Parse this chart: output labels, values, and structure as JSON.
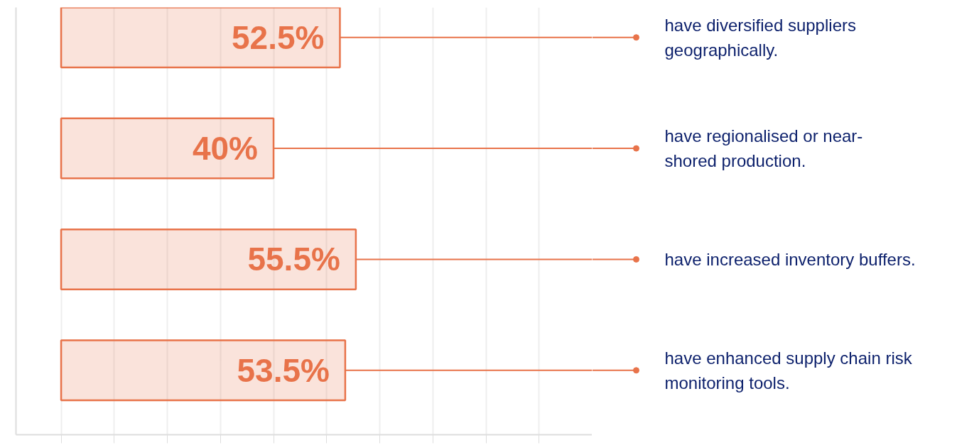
{
  "chart_data": {
    "type": "bar",
    "orientation": "horizontal",
    "categories": [
      "have diversified suppliers\ngeographically.",
      "have regionalised or near-\nshored production.",
      "have increased inventory buffers.",
      "have enhanced supply chain risk\nmonitoring tools."
    ],
    "values": [
      52.5,
      40,
      55.5,
      53.5
    ],
    "value_labels": [
      "52.5%",
      "40%",
      "55.5%",
      "53.5%"
    ],
    "color": "#e8734a",
    "xlim": [
      -8.5,
      100
    ],
    "xticks": [
      {
        "value": 0,
        "label": null
      },
      {
        "value": 10,
        "label": null
      },
      {
        "value": 20,
        "label": null
      },
      {
        "value": 30,
        "label": null
      },
      {
        "value": 40,
        "label": null
      },
      {
        "value": 50,
        "label": null
      },
      {
        "value": 60,
        "label": null
      },
      {
        "value": 70,
        "label": null
      },
      {
        "value": 80,
        "label": null
      },
      {
        "value": 90,
        "label": null
      },
      {
        "value": 100,
        "label": null
      }
    ],
    "grid": "x"
  }
}
